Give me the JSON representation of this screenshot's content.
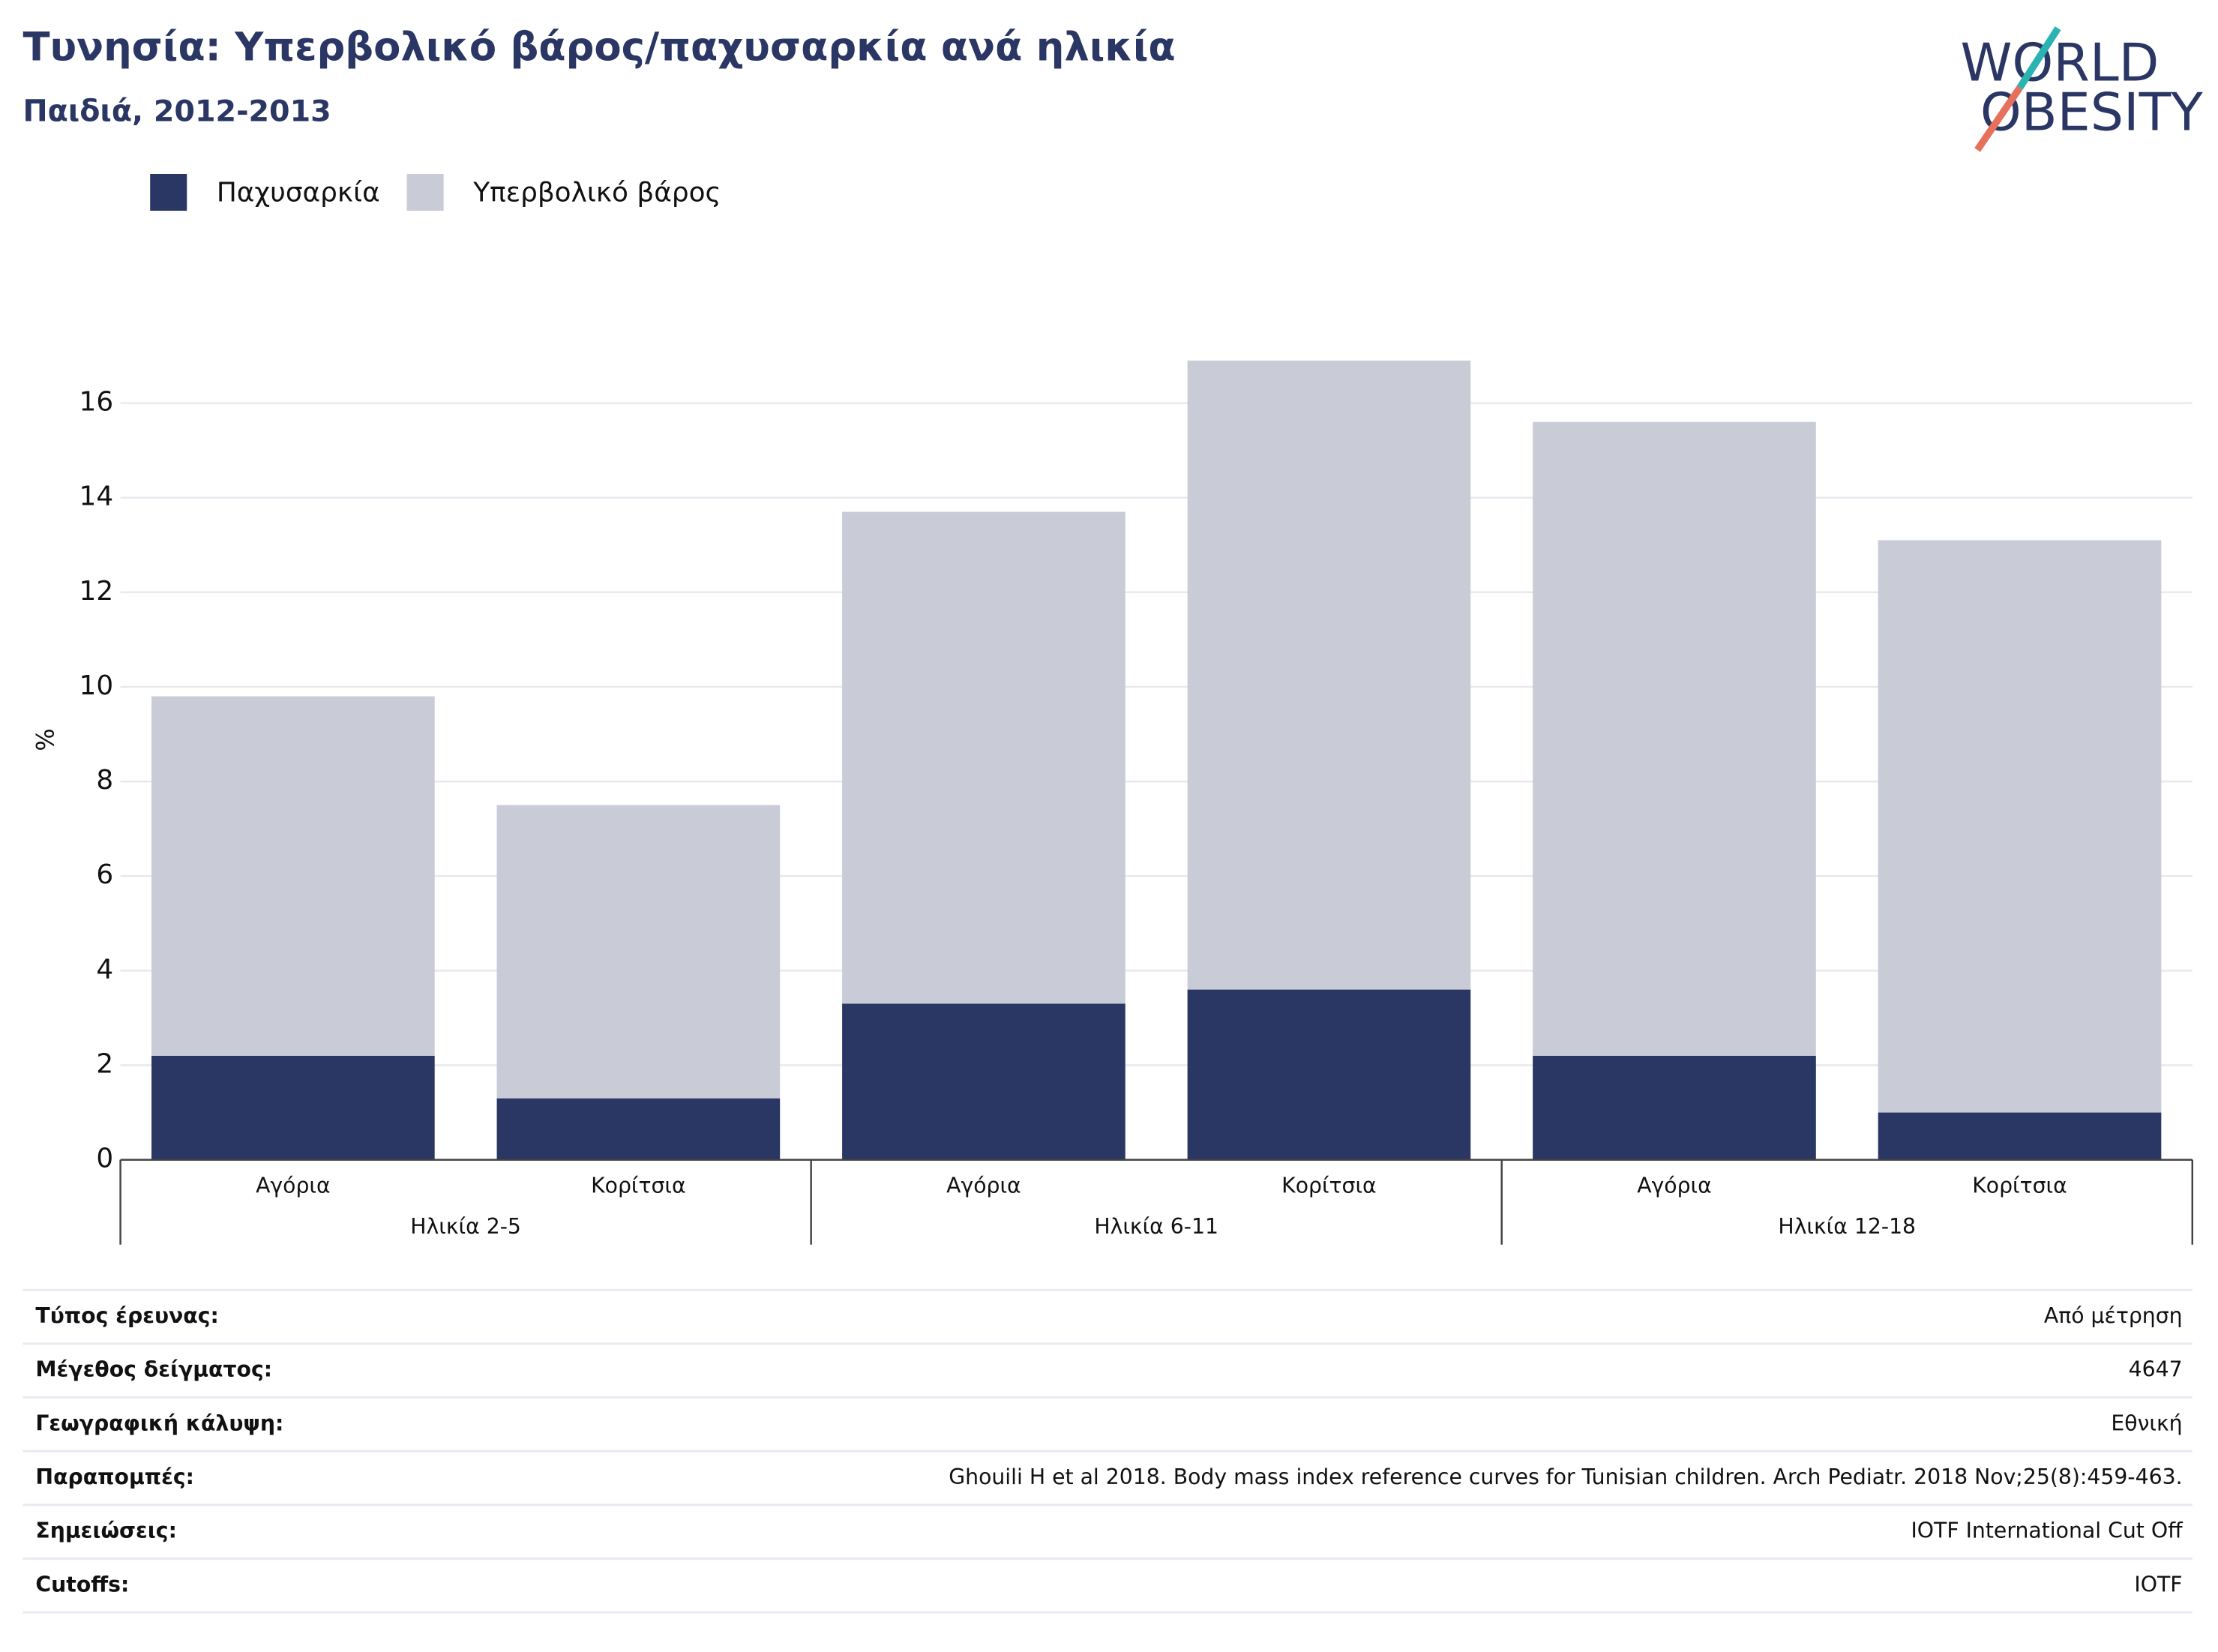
{
  "chart_data": {
    "type": "stacked_bar",
    "title": "Τυνησία: Υπερβολικό βάρος/παχυσαρκία ανά ηλικία",
    "subtitle": "Παιδιά, 2012-2013",
    "logo": [
      "WORLD",
      "OBESITY"
    ],
    "y_label": "%",
    "groups": [
      {
        "name": "Ηλικία 2-5",
        "categories": [
          "Αγόρια",
          "Κορίτσια"
        ]
      },
      {
        "name": "Ηλικία 6-11",
        "categories": [
          "Αγόρια",
          "Κορίτσια"
        ]
      },
      {
        "name": "Ηλικία 12-18",
        "categories": [
          "Αγόρια",
          "Κορίτσια"
        ]
      }
    ],
    "series": [
      {
        "name": "Παχυσαρκία",
        "color": "#2a3663",
        "values": [
          2.2,
          1.3,
          3.3,
          3.6,
          2.2,
          1.0
        ]
      },
      {
        "name": "Υπερβολικό βάρος",
        "color": "#c9cbd7",
        "values": [
          7.6,
          6.2,
          10.4,
          13.3,
          13.4,
          12.1
        ]
      }
    ],
    "ylim": [
      0,
      17.3
    ],
    "yticks": [
      0,
      2,
      4,
      6,
      8,
      10,
      12,
      14,
      16
    ],
    "grid": true
  },
  "info_table": {
    "rows": [
      [
        "Τύπος έρευνας:",
        "Από μέτρηση"
      ],
      [
        "Μέγεθος δείγματος:",
        "4647"
      ],
      [
        "Γεωγραφική κάλυψη:",
        "Εθνική"
      ],
      [
        "Παραπομπές:",
        "Ghouili H et al 2018. Body mass index reference curves for Tunisian children. Arch Pediatr. 2018 Nov;25(8):459-463."
      ],
      [
        "Σημειώσεις:",
        "IOTF International Cut Off"
      ],
      [
        "Cutoffs:",
        "IOTF"
      ]
    ]
  }
}
